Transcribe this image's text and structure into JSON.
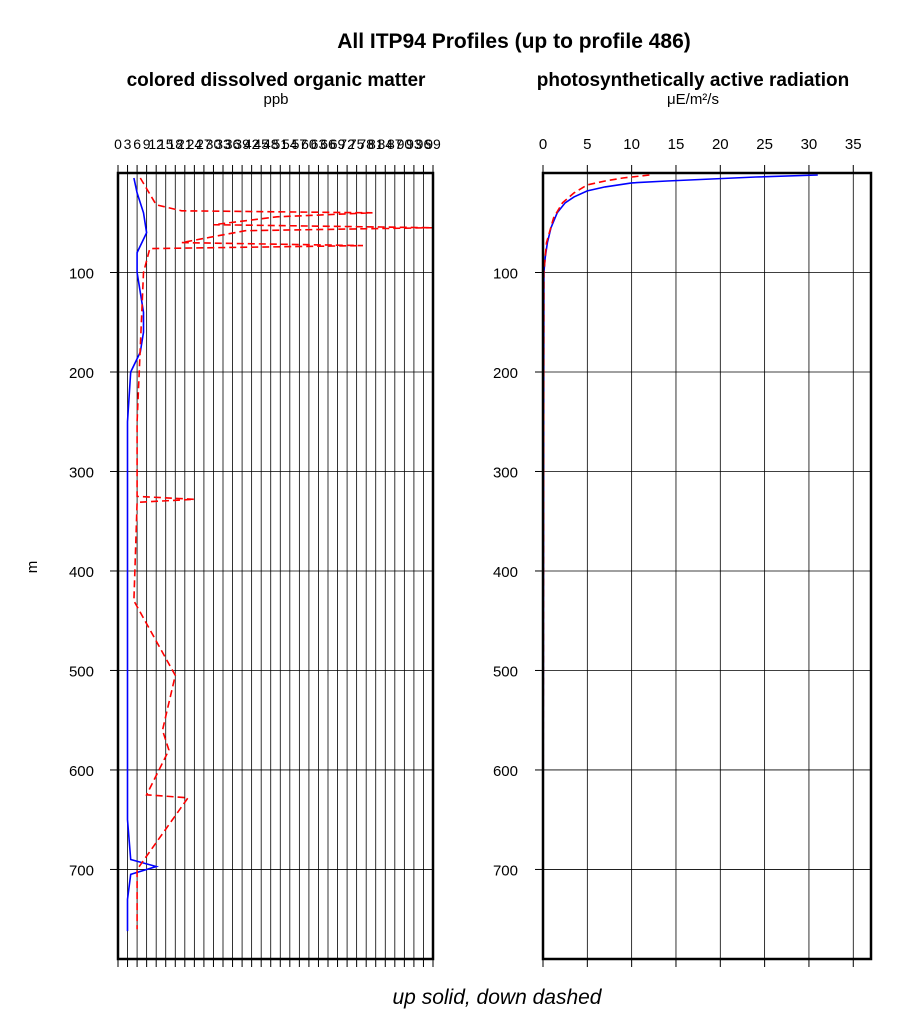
{
  "chart_data": {
    "type": "line",
    "title": "All ITP94 Profiles (up to profile 486)",
    "ylabel": "m",
    "caption": "up solid, down dashed",
    "ylim": [
      790,
      0
    ],
    "yticks": [
      100,
      200,
      300,
      400,
      500,
      600,
      700
    ],
    "legend": [
      {
        "name": "up",
        "style": "solid",
        "color": "#0000ff"
      },
      {
        "name": "down",
        "style": "dashed",
        "color": "#ff0000"
      }
    ],
    "panels": [
      {
        "title": "colored dissolved organic matter",
        "xlabel": "ppb",
        "xlim": [
          0,
          99
        ],
        "xticks": [
          0,
          3,
          6,
          9,
          12,
          15,
          18,
          21,
          24,
          27,
          30,
          33,
          36,
          39,
          42,
          45,
          48,
          51,
          54,
          57,
          60,
          63,
          66,
          69,
          72,
          75,
          78,
          81,
          84,
          87,
          90,
          93,
          96,
          99
        ],
        "xtick_labels": [
          "0",
          "3",
          "6",
          "9",
          "12",
          "15",
          "18",
          "21",
          "24",
          "27",
          "30",
          "33",
          "36",
          "39",
          "42",
          "45",
          "48",
          "51",
          "54",
          "57",
          "60",
          "63",
          "66",
          "69",
          "72",
          "75",
          "78",
          "81",
          "84",
          "87",
          "90",
          "93",
          "96",
          "99"
        ],
        "series": [
          {
            "name": "up",
            "style": "solid",
            "color": "#0000ff",
            "depth": [
              5,
              20,
              40,
              60,
              80,
              100,
              120,
              140,
              160,
              180,
              200,
              250,
              300,
              350,
              400,
              450,
              500,
              550,
              600,
              650,
              690,
              697,
              705,
              730,
              762
            ],
            "value": [
              5,
              6,
              8,
              9,
              6,
              6,
              7,
              8,
              8,
              7,
              4,
              3,
              3,
              3,
              3,
              3,
              3,
              3,
              3,
              3,
              4,
              12,
              4,
              3,
              3
            ]
          },
          {
            "name": "down",
            "style": "dashed",
            "color": "#ff0000",
            "depth": [
              5,
              32,
              38,
              40,
              44,
              52,
              55,
              58,
              70,
              73,
              76,
              100,
              250,
              325,
              328,
              331,
              430,
              505,
              560,
              580,
              625,
              628,
              700,
              760
            ],
            "value": [
              7,
              12,
              20,
              80,
              50,
              30,
              99,
              40,
              20,
              77,
              10,
              8,
              6,
              6,
              24,
              6,
              5,
              18,
              14,
              16,
              9,
              22,
              6,
              6
            ]
          }
        ]
      },
      {
        "title": "photosynthetically active radiation",
        "xlabel": "μE/m²/s",
        "xlim": [
          0,
          37
        ],
        "xticks": [
          0,
          5,
          10,
          15,
          20,
          25,
          30,
          35
        ],
        "xtick_labels": [
          "0",
          "5",
          "10",
          "15",
          "20",
          "25",
          "30",
          "35"
        ],
        "series": [
          {
            "name": "up",
            "style": "solid",
            "color": "#0000ff",
            "depth": [
              2,
              4,
              6,
              8,
              10,
              14,
              18,
              24,
              30,
              40,
              55,
              70,
              85,
              100,
              760
            ],
            "value": [
              31,
              24,
              19,
              14,
              10,
              7,
              5,
              3.5,
              2.5,
              1.6,
              0.9,
              0.5,
              0.25,
              0.1,
              0
            ]
          },
          {
            "name": "down",
            "style": "dashed",
            "color": "#ff0000",
            "depth": [
              2,
              5,
              8,
              12,
              20,
              30,
              45,
              70,
              100,
              760
            ],
            "value": [
              12,
              9,
              7,
              5,
              3.5,
              2.2,
              1.2,
              0.4,
              0.1,
              0
            ]
          }
        ]
      }
    ]
  }
}
